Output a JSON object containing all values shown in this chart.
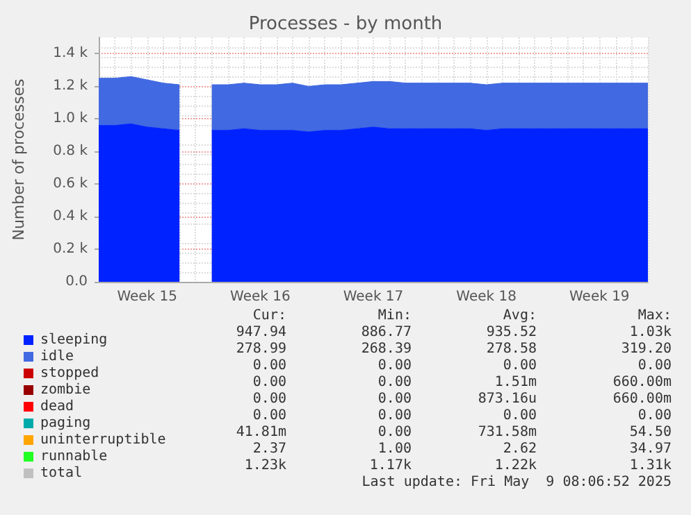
{
  "chart_data": {
    "type": "area",
    "title": "Processes - by month",
    "ylabel": "Number of processes",
    "stacked": true,
    "marker": "none",
    "grid": true,
    "legend": "bottom left",
    "categories": [
      null,
      null,
      null,
      "Week 15",
      null,
      null,
      null,
      null,
      null,
      null,
      "Week 16",
      null,
      null,
      null,
      null,
      null,
      null,
      "Week 17",
      null,
      null,
      null,
      null,
      null,
      null,
      "Week 18",
      null,
      null,
      null,
      null,
      null,
      null,
      "Week 19",
      null,
      null,
      null
    ],
    "ylim": [
      0,
      1500
    ],
    "yticks": [
      {
        "value": 0,
        "label": "0.0"
      },
      {
        "value": 200,
        "label": "0.2 k"
      },
      {
        "value": 400,
        "label": "0.4 k"
      },
      {
        "value": 600,
        "label": "0.6 k"
      },
      {
        "value": 800,
        "label": "0.8 k"
      },
      {
        "value": 1000,
        "label": "1.0 k"
      },
      {
        "value": 1200,
        "label": "1.2 k"
      },
      {
        "value": 1400,
        "label": "1.4 k"
      }
    ],
    "series": [
      {
        "name": "sleeping",
        "color": "#0022ff",
        "values": [
          960,
          960,
          970,
          950,
          940,
          930,
          null,
          930,
          930,
          940,
          930,
          930,
          930,
          920,
          930,
          930,
          940,
          950,
          940,
          940,
          940,
          940,
          940,
          940,
          930,
          940,
          940,
          940,
          940,
          940,
          940,
          940,
          940,
          940,
          940
        ]
      },
      {
        "name": "idle",
        "color": "#4169e1",
        "values": [
          290,
          290,
          290,
          290,
          280,
          280,
          null,
          280,
          280,
          280,
          280,
          280,
          290,
          280,
          280,
          280,
          280,
          280,
          290,
          280,
          280,
          280,
          280,
          280,
          280,
          280,
          280,
          280,
          280,
          280,
          280,
          280,
          280,
          280,
          280
        ]
      },
      {
        "name": "stopped",
        "color": "#cc0000",
        "values": [
          null,
          null,
          null,
          null,
          null,
          null,
          null,
          null,
          null,
          null,
          null,
          null,
          null,
          null,
          null,
          null,
          null,
          null,
          null,
          null,
          null,
          null,
          null,
          null,
          null,
          null,
          null,
          null,
          null,
          null,
          null,
          null,
          null,
          null,
          null
        ]
      },
      {
        "name": "zombie",
        "color": "#990000",
        "values": [
          null,
          null,
          null,
          null,
          null,
          null,
          null,
          null,
          null,
          null,
          null,
          null,
          null,
          null,
          null,
          null,
          null,
          null,
          null,
          null,
          null,
          null,
          null,
          null,
          null,
          null,
          null,
          null,
          null,
          null,
          null,
          null,
          null,
          null,
          null
        ]
      },
      {
        "name": "dead",
        "color": "#ff0000",
        "values": [
          null,
          null,
          null,
          null,
          null,
          null,
          null,
          null,
          null,
          null,
          null,
          null,
          null,
          null,
          null,
          null,
          null,
          null,
          null,
          null,
          null,
          null,
          null,
          null,
          null,
          null,
          null,
          null,
          null,
          null,
          null,
          null,
          null,
          null,
          null
        ]
      },
      {
        "name": "paging",
        "color": "#00aaaa",
        "values": [
          null,
          null,
          null,
          null,
          null,
          null,
          null,
          null,
          null,
          null,
          null,
          null,
          null,
          null,
          null,
          null,
          null,
          null,
          null,
          null,
          null,
          null,
          null,
          null,
          null,
          null,
          null,
          null,
          null,
          null,
          null,
          null,
          null,
          null,
          null
        ]
      },
      {
        "name": "uninterruptible",
        "color": "#ffa500",
        "values": [
          null,
          null,
          null,
          null,
          null,
          null,
          null,
          null,
          null,
          null,
          null,
          null,
          null,
          null,
          null,
          null,
          null,
          null,
          null,
          null,
          null,
          null,
          null,
          null,
          null,
          null,
          null,
          null,
          null,
          null,
          null,
          null,
          null,
          null,
          null
        ]
      },
      {
        "name": "runnable",
        "color": "#22ff22",
        "values": [
          null,
          null,
          null,
          null,
          null,
          null,
          null,
          null,
          null,
          null,
          null,
          null,
          null,
          null,
          null,
          null,
          null,
          null,
          null,
          null,
          null,
          null,
          null,
          null,
          null,
          null,
          null,
          null,
          null,
          null,
          null,
          null,
          null,
          null,
          null
        ]
      },
      {
        "name": "total",
        "color": "#c0c0c0",
        "type": "line",
        "values": [
          null,
          null,
          null,
          null,
          null,
          null,
          null,
          null,
          null,
          null,
          null,
          null,
          null,
          null,
          null,
          null,
          null,
          null,
          null,
          null,
          null,
          null,
          null,
          null,
          null,
          null,
          null,
          null,
          null,
          null,
          null,
          null,
          null,
          null,
          null
        ]
      }
    ],
    "annotations": [
      "Cur:",
      "Min:",
      "Avg:",
      "Max:",
      "947.94",
      "886.77",
      "935.52",
      "1.03k",
      "278.99",
      "268.39",
      "278.58",
      "319.20",
      "0.00",
      "0.00",
      "0.00",
      "0.00",
      "0.00",
      "0.00",
      "1.51m",
      "660.00m",
      "0.00",
      "0.00",
      "873.16u",
      "660.00m",
      "0.00",
      "0.00",
      "0.00",
      "0.00",
      "41.81m",
      "0.00",
      "731.58m",
      "54.50",
      "2.37",
      "1.00",
      "2.62",
      "34.97",
      "1.23k",
      "1.17k",
      "1.22k",
      "1.31k",
      "Last update: Fri May  9 08:06:52 2025"
    ]
  }
}
